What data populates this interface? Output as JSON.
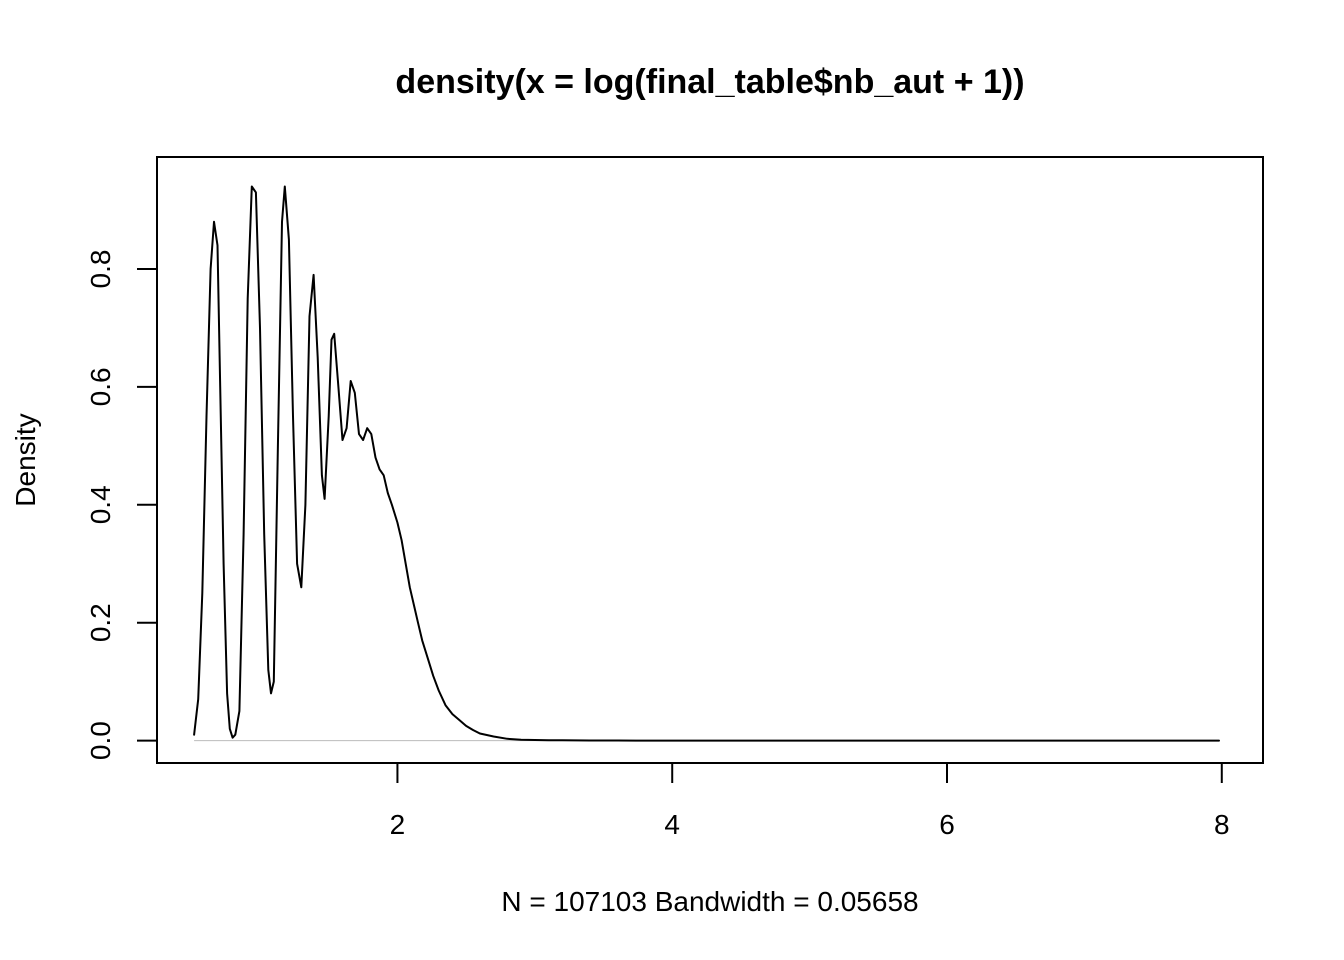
{
  "chart_data": {
    "type": "line",
    "title": "density(x = log(final_table$nb_aut + 1))",
    "xlabel": "N = 107103   Bandwidth = 0.05658",
    "ylabel": "Density",
    "xlim": [
      0.25,
      8.3
    ],
    "ylim": [
      -0.038,
      0.99
    ],
    "x_ticks": [
      2,
      4,
      6,
      8
    ],
    "x_tick_labels": [
      "2",
      "4",
      "6",
      "8"
    ],
    "y_ticks": [
      0.0,
      0.2,
      0.4,
      0.6,
      0.8
    ],
    "y_tick_labels": [
      "0.0",
      "0.2",
      "0.4",
      "0.6",
      "0.8"
    ],
    "grid": false,
    "baseline_y": 0.0,
    "line_color": "#000000",
    "baseline_color": "#bbbbbb",
    "series": [
      {
        "x": [
          0.52,
          0.55,
          0.58,
          0.61,
          0.64,
          0.665,
          0.69,
          0.71,
          0.735,
          0.76,
          0.78,
          0.8,
          0.82,
          0.85,
          0.88,
          0.91,
          0.94,
          0.97,
          1.0,
          1.03,
          1.06,
          1.08,
          1.1,
          1.13,
          1.16,
          1.18,
          1.21,
          1.24,
          1.27,
          1.3,
          1.33,
          1.36,
          1.39,
          1.42,
          1.45,
          1.47,
          1.5,
          1.52,
          1.54,
          1.57,
          1.6,
          1.63,
          1.66,
          1.69,
          1.72,
          1.75,
          1.78,
          1.81,
          1.84,
          1.87,
          1.9,
          1.93,
          1.96,
          2.0,
          2.03,
          2.06,
          2.09,
          2.12,
          2.15,
          2.18,
          2.22,
          2.26,
          2.3,
          2.35,
          2.4,
          2.45,
          2.5,
          2.55,
          2.6,
          2.7,
          2.8,
          2.9,
          3.0,
          3.1,
          3.2,
          3.3,
          3.4,
          3.5,
          3.6,
          3.8,
          4.0,
          4.3,
          4.7,
          5.0,
          5.5,
          6.0,
          6.5,
          7.0,
          7.5,
          7.98
        ],
        "values": [
          0.01,
          0.07,
          0.25,
          0.55,
          0.8,
          0.88,
          0.84,
          0.6,
          0.3,
          0.08,
          0.02,
          0.005,
          0.01,
          0.05,
          0.35,
          0.75,
          0.94,
          0.93,
          0.7,
          0.35,
          0.12,
          0.08,
          0.1,
          0.5,
          0.88,
          0.94,
          0.85,
          0.55,
          0.3,
          0.26,
          0.4,
          0.72,
          0.79,
          0.65,
          0.45,
          0.41,
          0.55,
          0.68,
          0.69,
          0.6,
          0.51,
          0.53,
          0.61,
          0.59,
          0.52,
          0.51,
          0.53,
          0.52,
          0.48,
          0.46,
          0.45,
          0.42,
          0.4,
          0.37,
          0.34,
          0.3,
          0.26,
          0.23,
          0.2,
          0.17,
          0.14,
          0.11,
          0.085,
          0.06,
          0.045,
          0.035,
          0.025,
          0.018,
          0.012,
          0.007,
          0.003,
          0.0015,
          0.001,
          0.0007,
          0.0005,
          0.0003,
          0.0002,
          0.0001,
          0.0001,
          5e-05,
          3e-05,
          1e-05,
          5e-06,
          0.0,
          0.0,
          0.0,
          0.0,
          0.0,
          0.0,
          0.0
        ]
      }
    ]
  }
}
